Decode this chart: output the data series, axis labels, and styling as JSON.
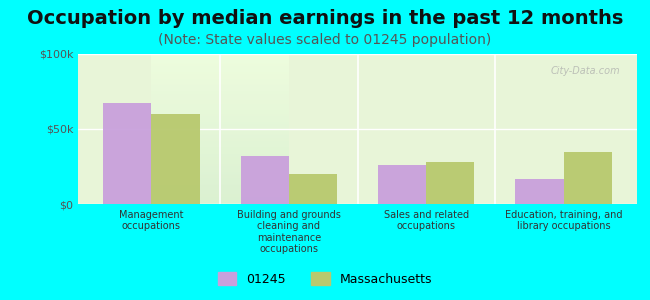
{
  "title": "Occupation by median earnings in the past 12 months",
  "subtitle": "(Note: State values scaled to 01245 population)",
  "categories": [
    "Management\noccupations",
    "Building and grounds\ncleaning and\nmaintenance\noccupations",
    "Sales and related\noccupations",
    "Education, training, and\nlibrary occupations"
  ],
  "values_01245": [
    67000,
    32000,
    26000,
    17000
  ],
  "values_mass": [
    60000,
    20000,
    28000,
    35000
  ],
  "color_01245": "#c9a0dc",
  "color_mass": "#b8c96e",
  "ylim": [
    0,
    100000
  ],
  "yticks": [
    0,
    50000,
    100000
  ],
  "ytick_labels": [
    "$0",
    "$50k",
    "$100k"
  ],
  "background_color": "#00ffff",
  "plot_bg_top": "#e8f5e0",
  "plot_bg_bottom": "#f5ffe8",
  "watermark": "City-Data.com",
  "legend_01245": "01245",
  "legend_mass": "Massachusetts",
  "title_fontsize": 14,
  "subtitle_fontsize": 10
}
